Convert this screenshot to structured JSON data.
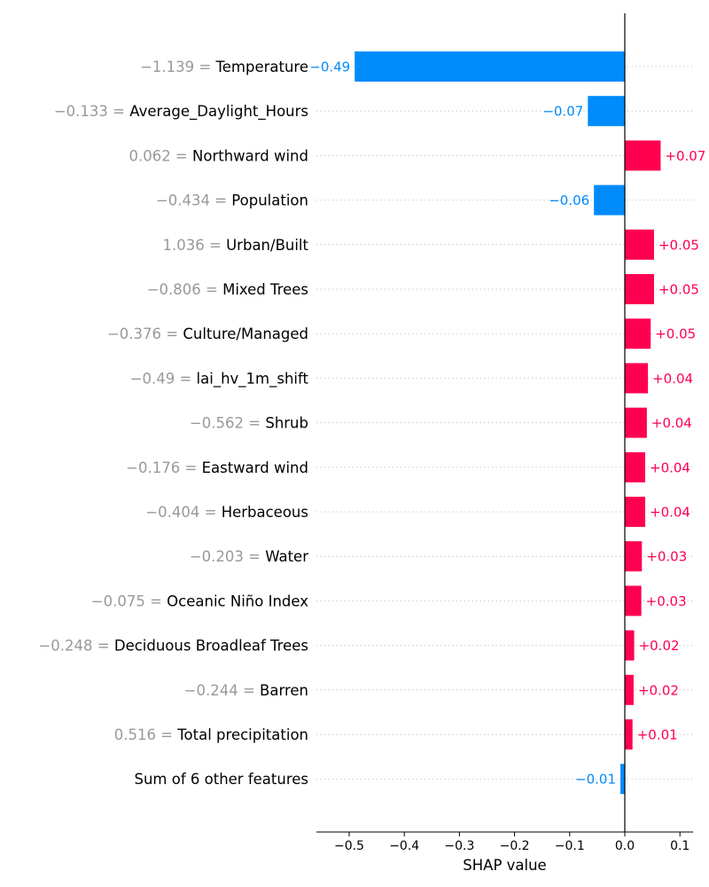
{
  "chart_data": {
    "type": "bar",
    "xlabel": "SHAP value",
    "xlim": [
      -0.55,
      0.12
    ],
    "xticks": [
      "−0.5",
      "−0.4",
      "−0.3",
      "−0.2",
      "−0.1",
      "0.0",
      "0.1"
    ],
    "xtick_values": [
      -0.5,
      -0.4,
      -0.3,
      -0.2,
      -0.1,
      0.0,
      0.1
    ],
    "colors": {
      "positive": "#ff0051",
      "negative": "#008bfb",
      "feature_value": "#999999",
      "grid": "#cccccc"
    },
    "features": [
      {
        "value_text": "−1.139 =",
        "name": "Temperature",
        "shap": -0.49,
        "label": "−0.49"
      },
      {
        "value_text": "−0.133 =",
        "name": "Average_Daylight_Hours",
        "shap": -0.067,
        "label": "−0.07"
      },
      {
        "value_text": "0.062 =",
        "name": "Northward wind",
        "shap": 0.065,
        "label": "+0.07"
      },
      {
        "value_text": "−0.434 =",
        "name": "Population",
        "shap": -0.056,
        "label": "−0.06"
      },
      {
        "value_text": "1.036 =",
        "name": "Urban/Built",
        "shap": 0.053,
        "label": "+0.05"
      },
      {
        "value_text": "−0.806 =",
        "name": "Mixed Trees",
        "shap": 0.053,
        "label": "+0.05"
      },
      {
        "value_text": "−0.376 =",
        "name": "Culture/Managed",
        "shap": 0.047,
        "label": "+0.05"
      },
      {
        "value_text": "−0.49 =",
        "name": "lai_hv_1m_shift",
        "shap": 0.042,
        "label": "+0.04"
      },
      {
        "value_text": "−0.562 =",
        "name": "Shrub",
        "shap": 0.04,
        "label": "+0.04"
      },
      {
        "value_text": "−0.176 =",
        "name": "Eastward wind",
        "shap": 0.037,
        "label": "+0.04"
      },
      {
        "value_text": "−0.404 =",
        "name": "Herbaceous",
        "shap": 0.037,
        "label": "+0.04"
      },
      {
        "value_text": "−0.203 =",
        "name": "Water",
        "shap": 0.031,
        "label": "+0.03"
      },
      {
        "value_text": "−0.075 =",
        "name": "Oceanic Niño Index",
        "shap": 0.03,
        "label": "+0.03"
      },
      {
        "value_text": "−0.248 =",
        "name": "Deciduous Broadleaf Trees",
        "shap": 0.017,
        "label": "+0.02"
      },
      {
        "value_text": "−0.244 =",
        "name": "Barren",
        "shap": 0.016,
        "label": "+0.02"
      },
      {
        "value_text": "0.516 =",
        "name": "Total precipitation",
        "shap": 0.014,
        "label": "+0.01"
      },
      {
        "value_text": "",
        "name": "Sum of 6 other features",
        "shap": -0.008,
        "label": "−0.01"
      }
    ]
  }
}
